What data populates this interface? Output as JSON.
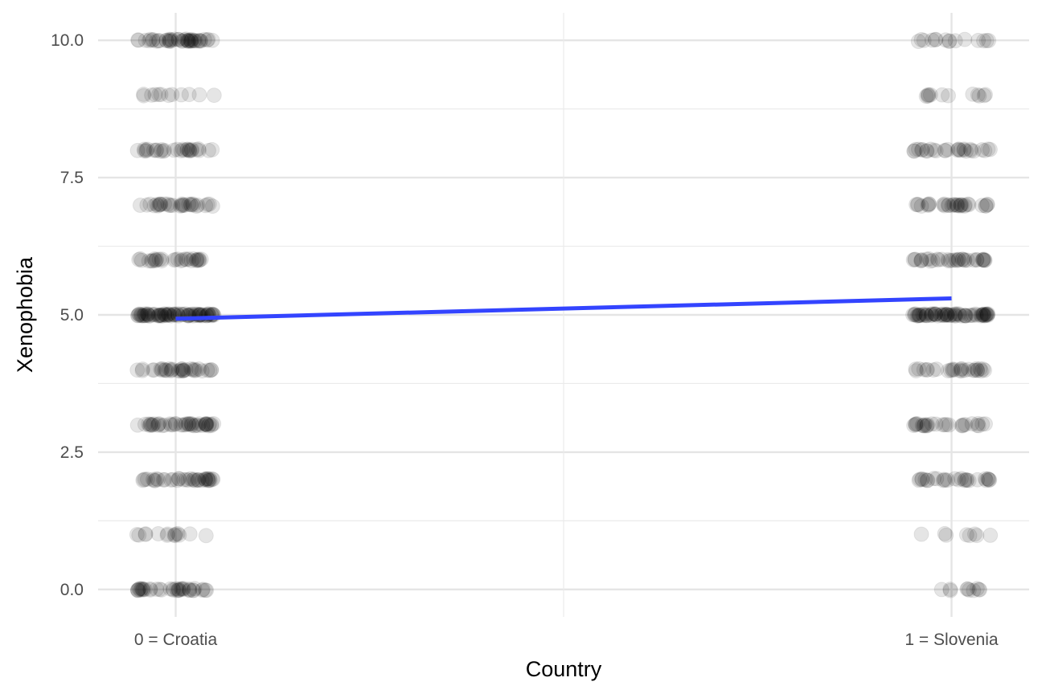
{
  "chart_data": {
    "type": "scatter",
    "title": "",
    "xlabel": "Country",
    "ylabel": "Xenophobia",
    "categories": [
      "0 = Croatia",
      "1 = Slovenia"
    ],
    "x_values": [
      0,
      1
    ],
    "xlim": [
      -0.1,
      1.1
    ],
    "ylim": [
      -0.5,
      10.5
    ],
    "y_ticks": [
      0,
      2.5,
      5,
      7.5,
      10
    ],
    "y_tick_labels": [
      "0.0",
      "2.5",
      "5.0",
      "7.5",
      "10.0"
    ],
    "x_jitter": 0.05,
    "grid": true,
    "legend": "none",
    "point_color": "#000000",
    "point_alpha": 0.1,
    "fit_color": "#3344ff",
    "points": [
      {
        "x": 0,
        "y": 10,
        "n": 45
      },
      {
        "x": 0,
        "y": 9,
        "n": 12
      },
      {
        "x": 0,
        "y": 8,
        "n": 30
      },
      {
        "x": 0,
        "y": 7,
        "n": 32
      },
      {
        "x": 0,
        "y": 6,
        "n": 30
      },
      {
        "x": 0,
        "y": 5,
        "n": 80
      },
      {
        "x": 0,
        "y": 4,
        "n": 35
      },
      {
        "x": 0,
        "y": 3,
        "n": 45
      },
      {
        "x": 0,
        "y": 2,
        "n": 38
      },
      {
        "x": 0,
        "y": 1,
        "n": 14
      },
      {
        "x": 0,
        "y": 0,
        "n": 38
      },
      {
        "x": 1,
        "y": 10,
        "n": 15
      },
      {
        "x": 1,
        "y": 9,
        "n": 12
      },
      {
        "x": 1,
        "y": 8,
        "n": 28
      },
      {
        "x": 1,
        "y": 7,
        "n": 32
      },
      {
        "x": 1,
        "y": 6,
        "n": 35
      },
      {
        "x": 1,
        "y": 5,
        "n": 70
      },
      {
        "x": 1,
        "y": 4,
        "n": 28
      },
      {
        "x": 1,
        "y": 3,
        "n": 28
      },
      {
        "x": 1,
        "y": 2,
        "n": 28
      },
      {
        "x": 1,
        "y": 1,
        "n": 8
      },
      {
        "x": 1,
        "y": 0,
        "n": 10
      }
    ],
    "fit_line": {
      "x": [
        0,
        1
      ],
      "y": [
        4.93,
        5.3
      ]
    }
  }
}
